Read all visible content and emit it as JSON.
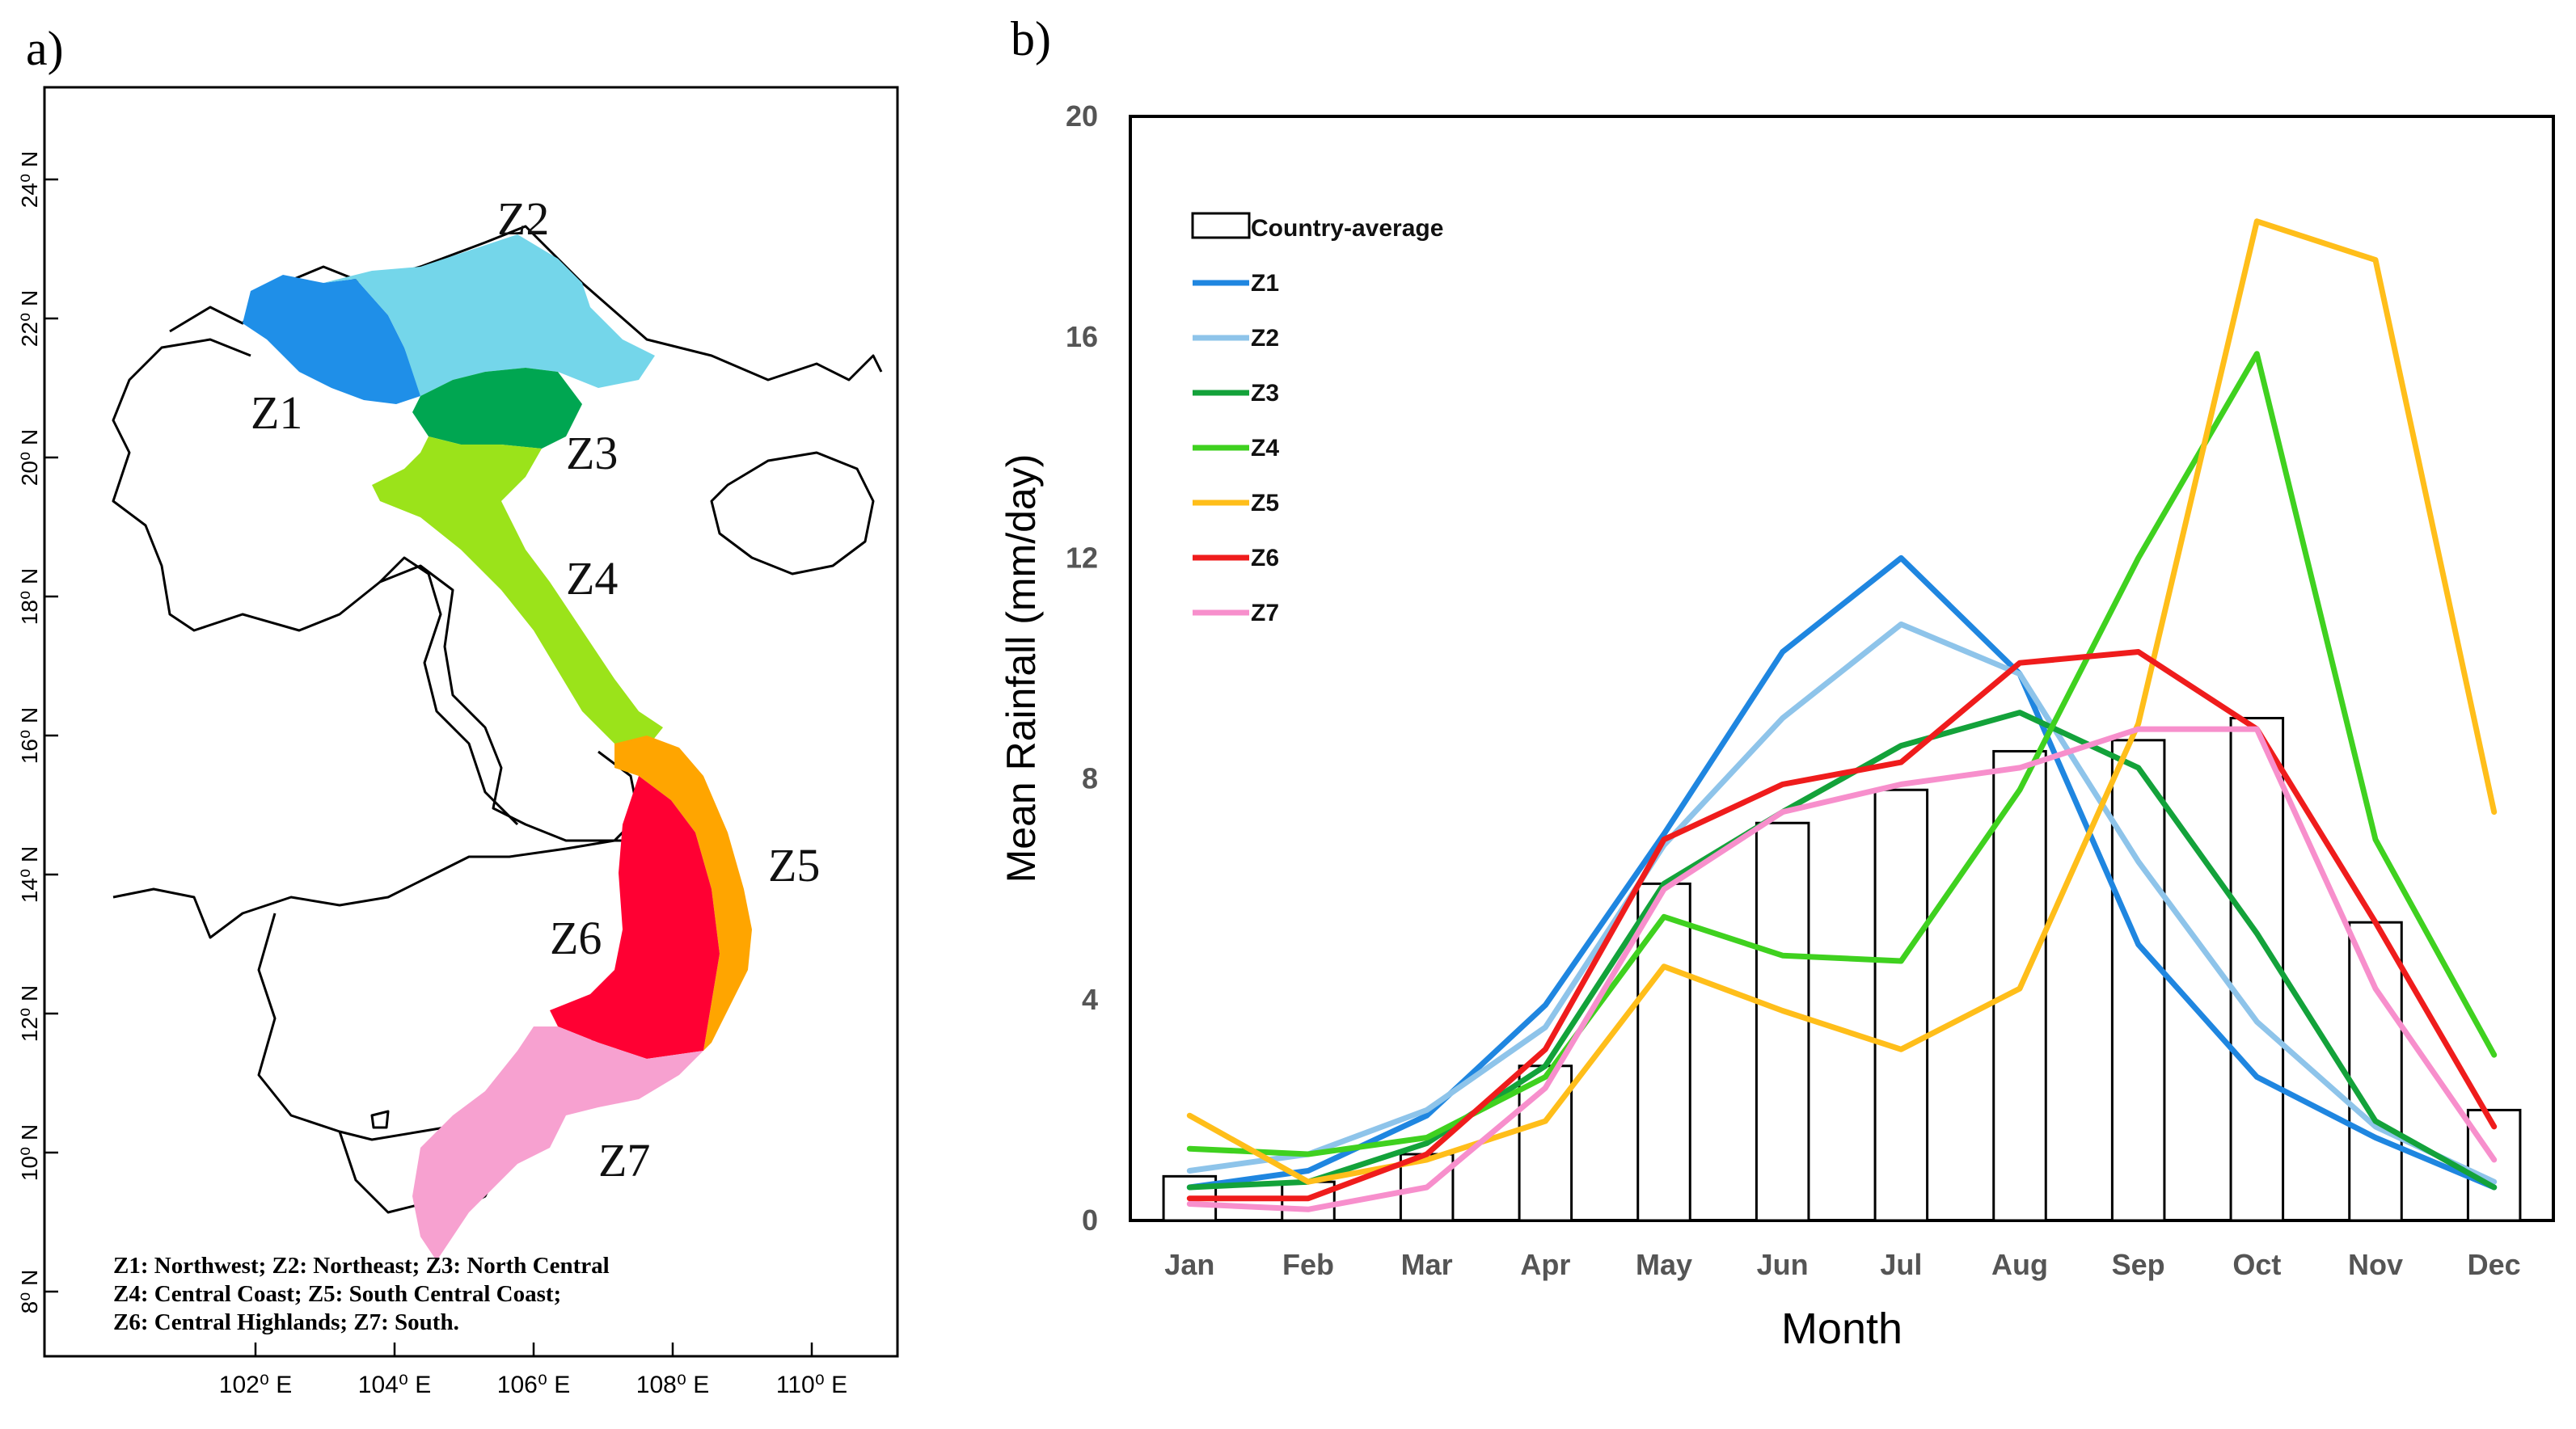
{
  "panel_a": {
    "label": "a)",
    "lat_ticks": [
      "8⁰ N",
      "10⁰ N",
      "12⁰ N",
      "14⁰ N",
      "16⁰ N",
      "18⁰ N",
      "20⁰ N",
      "22⁰ N",
      "24⁰ N"
    ],
    "lon_ticks": [
      "102⁰ E",
      "104⁰ E",
      "106⁰ E",
      "108⁰ E",
      "110⁰ E"
    ],
    "zones": [
      {
        "id": "Z1",
        "label": "Z1",
        "color": "#1f8fe8"
      },
      {
        "id": "Z2",
        "label": "Z2",
        "color": "#74d6ea"
      },
      {
        "id": "Z3",
        "label": "Z3",
        "color": "#00a651"
      },
      {
        "id": "Z4",
        "label": "Z4",
        "color": "#9be31a"
      },
      {
        "id": "Z5",
        "label": "Z5",
        "color": "#ffa500"
      },
      {
        "id": "Z6",
        "label": "Z6",
        "color": "#ff0033"
      },
      {
        "id": "Z7",
        "label": "Z7",
        "color": "#f7a1d0"
      }
    ],
    "legend_lines": [
      "Z1: Northwest; Z2: Northeast; Z3: North Central",
      "Z4: Central Coast; Z5: South Central Coast;",
      "Z6: Central Highlands; Z7: South."
    ]
  },
  "panel_b": {
    "label": "b)"
  },
  "chart_data": {
    "type": "line",
    "title": "",
    "xlabel": "Month",
    "ylabel": "Mean Rainfall (mm/day)",
    "ylim": [
      0,
      20
    ],
    "yticks": [
      "0",
      "4",
      "8",
      "12",
      "16",
      "20"
    ],
    "categories": [
      "Jan",
      "Feb",
      "Mar",
      "Apr",
      "May",
      "Jun",
      "Jul",
      "Aug",
      "Sep",
      "Oct",
      "Nov",
      "Dec"
    ],
    "bars": {
      "name": "Country-average",
      "values": [
        0.8,
        0.7,
        1.2,
        2.8,
        6.1,
        7.2,
        7.8,
        8.5,
        8.7,
        9.1,
        5.4,
        2.0
      ]
    },
    "series": [
      {
        "name": "Z1",
        "color": "#1f86e0",
        "values": [
          0.6,
          0.9,
          1.9,
          3.9,
          7.0,
          10.3,
          12.0,
          9.9,
          5.0,
          2.6,
          1.5,
          0.6
        ]
      },
      {
        "name": "Z2",
        "color": "#8ec4ea",
        "values": [
          0.9,
          1.2,
          2.0,
          3.5,
          6.8,
          9.1,
          10.8,
          9.9,
          6.5,
          3.6,
          1.7,
          0.7
        ]
      },
      {
        "name": "Z3",
        "color": "#13a23a",
        "values": [
          0.6,
          0.7,
          1.4,
          2.8,
          6.1,
          7.4,
          8.6,
          9.2,
          8.2,
          5.2,
          1.8,
          0.6
        ]
      },
      {
        "name": "Z4",
        "color": "#3fd11f",
        "values": [
          1.3,
          1.2,
          1.5,
          2.6,
          5.5,
          4.8,
          4.7,
          7.8,
          12.0,
          15.7,
          6.9,
          3.0
        ]
      },
      {
        "name": "Z5",
        "color": "#ffbe1a",
        "values": [
          1.9,
          0.7,
          1.1,
          1.8,
          4.6,
          3.8,
          3.1,
          4.2,
          9.0,
          18.1,
          17.4,
          7.4
        ]
      },
      {
        "name": "Z6",
        "color": "#ef1c1c",
        "values": [
          0.4,
          0.4,
          1.2,
          3.1,
          6.9,
          7.9,
          8.3,
          10.1,
          10.3,
          8.9,
          5.4,
          1.7
        ]
      },
      {
        "name": "Z7",
        "color": "#f78fcc",
        "values": [
          0.3,
          0.2,
          0.6,
          2.4,
          6.0,
          7.4,
          7.9,
          8.2,
          8.9,
          8.9,
          4.2,
          1.1
        ]
      }
    ],
    "legend_location": "top-left"
  }
}
